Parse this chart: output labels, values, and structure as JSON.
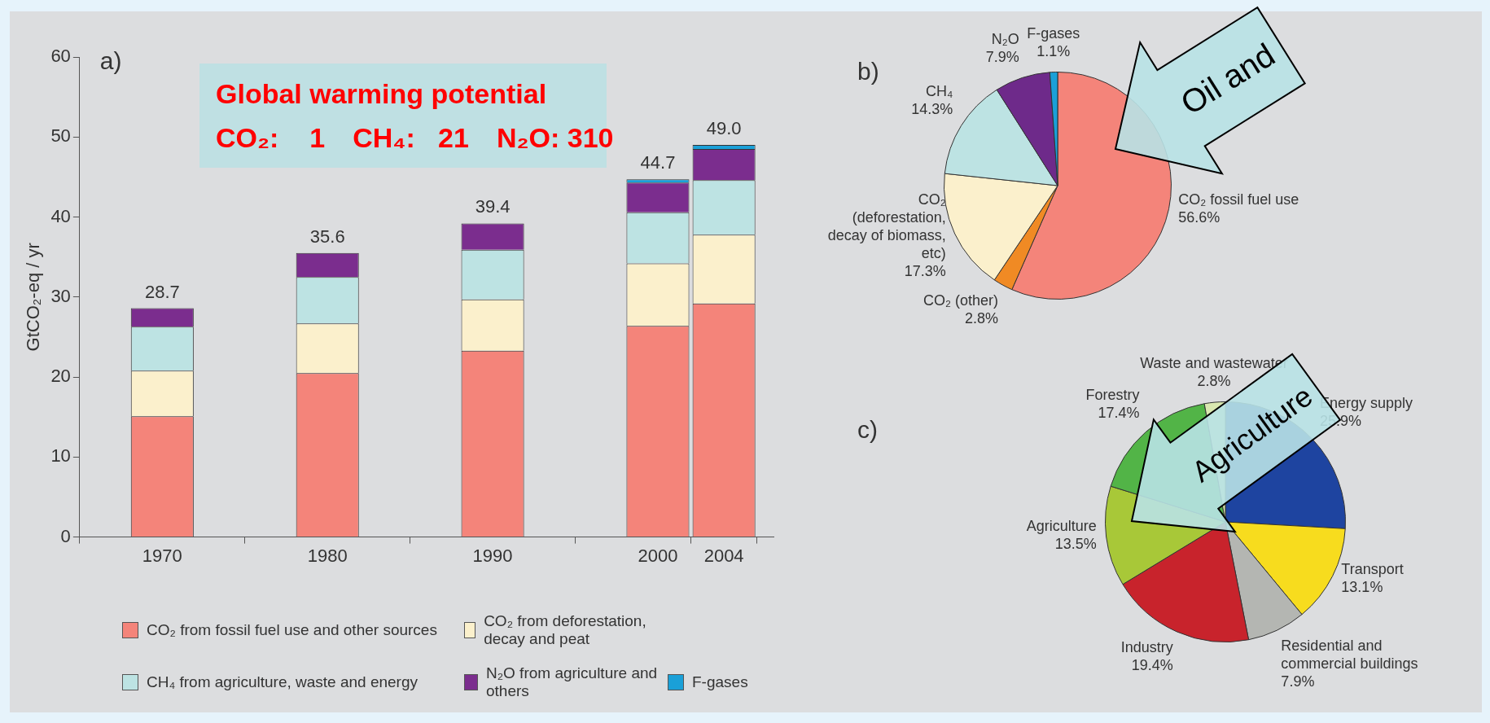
{
  "chart_data": [
    {
      "type": "bar",
      "title": "a)",
      "ylabel": "GtCO₂-eq / yr",
      "x": [
        1970,
        1980,
        1990,
        2000,
        2004
      ],
      "xlim": [
        1965,
        2007
      ],
      "xticks": [
        1970,
        1980,
        1990,
        2000,
        2004
      ],
      "ylim": [
        0,
        60
      ],
      "yticks": [
        0,
        10,
        20,
        30,
        40,
        50,
        60
      ],
      "stacked": true,
      "grid": false,
      "legend": "bottom",
      "series": [
        {
          "name": "CO₂ from fossil fuel use and other sources",
          "color": "#f4847a",
          "values": [
            15.1,
            20.5,
            23.3,
            26.4,
            29.2
          ]
        },
        {
          "name": "CO₂ from deforestation, decay and peat",
          "color": "#fbf0cc",
          "values": [
            5.7,
            6.2,
            6.4,
            7.8,
            8.6
          ]
        },
        {
          "name": "CH₄ from agriculture, waste and energy",
          "color": "#bde3e3",
          "values": [
            5.5,
            5.8,
            6.2,
            6.4,
            6.8
          ]
        },
        {
          "name": "N₂O from agriculture and others",
          "color": "#7b2d8e",
          "values": [
            2.3,
            3.0,
            3.3,
            3.7,
            3.9
          ]
        },
        {
          "name": "F-gases",
          "color": "#1aa0d8",
          "values": [
            null,
            null,
            null,
            0.4,
            0.5
          ]
        }
      ],
      "totals": [
        "28.7",
        "35.6",
        "39.4",
        "44.7",
        "49.0"
      ],
      "annotations": [
        "Global warming potential",
        "CO₂:    1",
        "CH₄:   21",
        "N₂O: 310"
      ]
    },
    {
      "type": "pie",
      "title": "b)",
      "categories": [
        "CO₂ fossil fuel use",
        "CO₂ (other)",
        "CO₂ (deforestation, decay of biomass, etc)",
        "CH₄",
        "N₂O",
        "F-gases"
      ],
      "values": [
        56.6,
        2.8,
        17.3,
        14.3,
        7.9,
        1.1
      ],
      "value_labels": [
        "56.6%",
        "2.8%",
        "17.3%",
        "14.3%",
        "7.9%",
        "1.1%"
      ],
      "colors": [
        "#f4847a",
        "#f08a24",
        "#fbf0cc",
        "#bde3e3",
        "#6e2a8a",
        "#1aa0d8"
      ],
      "annotations": [
        "Oil and"
      ]
    },
    {
      "type": "pie",
      "title": "c)",
      "categories": [
        "Energy supply",
        "Transport",
        "Residential and commercial buildings",
        "Industry",
        "Agriculture",
        "Forestry",
        "Waste and wastewater"
      ],
      "values": [
        25.9,
        13.1,
        7.9,
        19.4,
        13.5,
        17.4,
        2.8
      ],
      "value_labels": [
        "25.9%",
        "13.1%",
        "7.9%",
        "19.4%",
        "13.5%",
        "17.4%",
        "2.8%"
      ],
      "colors": [
        "#1e44a0",
        "#f7dc1e",
        "#b4b6b2",
        "#c8232c",
        "#a8c838",
        "#52b447",
        "#d9e8b0"
      ],
      "annotations": [
        "Agriculture"
      ]
    }
  ]
}
